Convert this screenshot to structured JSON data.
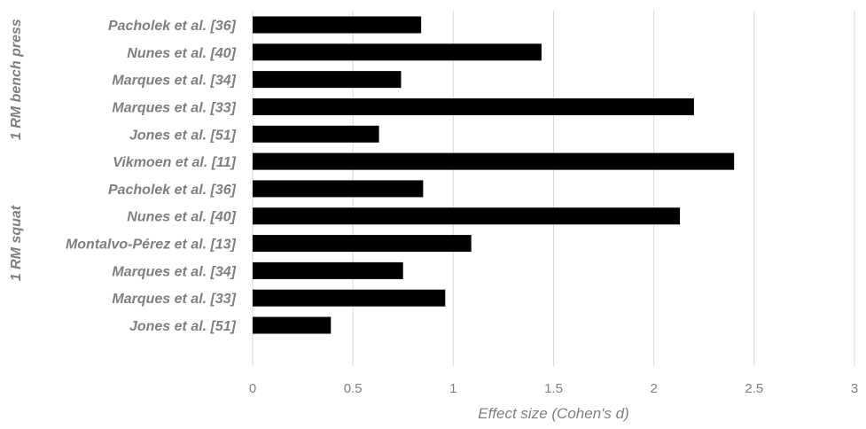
{
  "chart_data": {
    "type": "bar",
    "orientation": "horizontal",
    "categories": [
      "Pacholek et al. [36]",
      "Nunes et al. [40]",
      "Marques et al. [34]",
      "Marques et al. [33]",
      "Jones et al. [51]",
      "Vikmoen et al. [11]",
      "Pacholek et al. [36]",
      "Nunes et al. [40]",
      "Montalvo-Pérez et al. [13]",
      "Marques et al. [34]",
      "Marques et al. [33]",
      "Jones et al. [51]"
    ],
    "values": [
      0.84,
      1.44,
      0.74,
      2.2,
      0.63,
      2.4,
      0.85,
      2.13,
      1.09,
      0.75,
      0.96,
      0.39
    ],
    "groups": [
      {
        "label": "1 RM bench press",
        "first_index": 0,
        "last_index": 4
      },
      {
        "label": "1 RM squat",
        "first_index": 5,
        "last_index": 11
      }
    ],
    "xlabel": "Effect size (Cohen's d)",
    "ylabel": "",
    "xlim": [
      0,
      3
    ],
    "xticks": [
      0,
      0.5,
      1,
      1.5,
      2,
      2.5,
      3
    ],
    "xtick_labels": [
      "0",
      "0.5",
      "1",
      "1.5",
      "2",
      "2.5",
      "3"
    ],
    "grid": true,
    "legend": "none",
    "bar_color": "#000000",
    "text_color": "#7f7f7f",
    "grid_color": "#d9d9d9"
  }
}
